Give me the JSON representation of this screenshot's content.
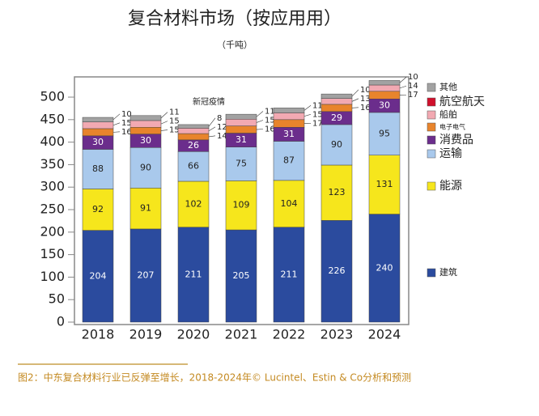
{
  "chart_data": {
    "type": "stacked-bar",
    "title": "复合材料市场（按应用用）",
    "subtitle": "（千吨）",
    "annotation": "新冠疫情",
    "caption": "图2：中东复合材料行业已反弹至增长，2018-2024年© Lucintel、Estin & Co分析和预测",
    "categories": [
      "2018",
      "2019",
      "2020",
      "2021",
      "2022",
      "2023",
      "2024"
    ],
    "series": [
      {
        "name": "建筑",
        "color": "#2b4b9e",
        "values": [
          204,
          207,
          211,
          205,
          211,
          226,
          240
        ]
      },
      {
        "name": "能源",
        "color": "#f6e61c",
        "values": [
          92,
          91,
          102,
          109,
          104,
          123,
          131
        ]
      },
      {
        "name": "运输",
        "color": "#a9c9ec",
        "values": [
          88,
          90,
          66,
          75,
          87,
          90,
          95
        ]
      },
      {
        "name": "消费品",
        "color": "#6b2d8c",
        "values": [
          30,
          30,
          26,
          31,
          31,
          29,
          30
        ]
      },
      {
        "name": "电子电气",
        "color": "#e8842c",
        "values": [
          16,
          15,
          14,
          16,
          17,
          16,
          17
        ]
      },
      {
        "name": "船舶",
        "color": "#f2a9b2",
        "values": [
          15,
          15,
          12,
          15,
          15,
          13,
          14
        ]
      },
      {
        "name": "航空航天",
        "color": "#d0102c",
        "values": [
          null,
          null,
          null,
          null,
          null,
          null,
          null
        ]
      },
      {
        "name": "其他",
        "color": "#a2a2a2",
        "values": [
          10,
          11,
          8,
          11,
          11,
          10,
          10
        ]
      }
    ],
    "ylim": [
      0,
      545
    ],
    "yticks": [
      0,
      50,
      100,
      150,
      200,
      250,
      300,
      350,
      400,
      450,
      500
    ]
  }
}
